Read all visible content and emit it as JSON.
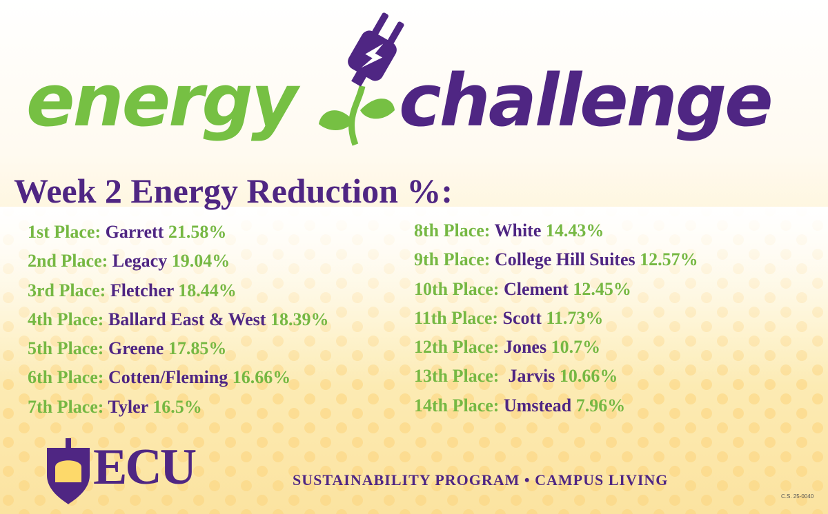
{
  "header": {
    "title_left": "energy",
    "title_right": "challenge",
    "subtitle": "Week 2 Energy Reduction %:"
  },
  "rankings": [
    {
      "place": "1st Place:",
      "name": "Garrett",
      "value": "21.58%"
    },
    {
      "place": "2nd Place:",
      "name": "Legacy",
      "value": "19.04%"
    },
    {
      "place": "3rd Place:",
      "name": "Fletcher",
      "value": "18.44%"
    },
    {
      "place": "4th Place:",
      "name": "Ballard East & West",
      "value": "18.39%"
    },
    {
      "place": "5th Place:",
      "name": "Greene",
      "value": "17.85%"
    },
    {
      "place": "6th Place:",
      "name": "Cotten/Fleming",
      "value": "16.66%"
    },
    {
      "place": "7th Place:",
      "name": "Tyler",
      "value": "16.5%"
    },
    {
      "place": "8th Place:",
      "name": "White",
      "value": "14.43%"
    },
    {
      "place": "9th Place:",
      "name": "College Hill Suites",
      "value": "12.57%"
    },
    {
      "place": "10th Place:",
      "name": "Clement",
      "value": "12.45%"
    },
    {
      "place": "11th Place:",
      "name": "Scott",
      "value": "11.73%"
    },
    {
      "place": "12th Place:",
      "name": "Jones",
      "value": "10.7%"
    },
    {
      "place": "13th Place: ",
      "name": "Jarvis",
      "value": "10.66%"
    },
    {
      "place": "14th Place:",
      "name": "Umstead",
      "value": "7.96%"
    }
  ],
  "footer": {
    "logo": "ECU",
    "program": "SUSTAINABILITY PROGRAM • CAMPUS LIVING",
    "code": "C.S. 25-0040"
  }
}
